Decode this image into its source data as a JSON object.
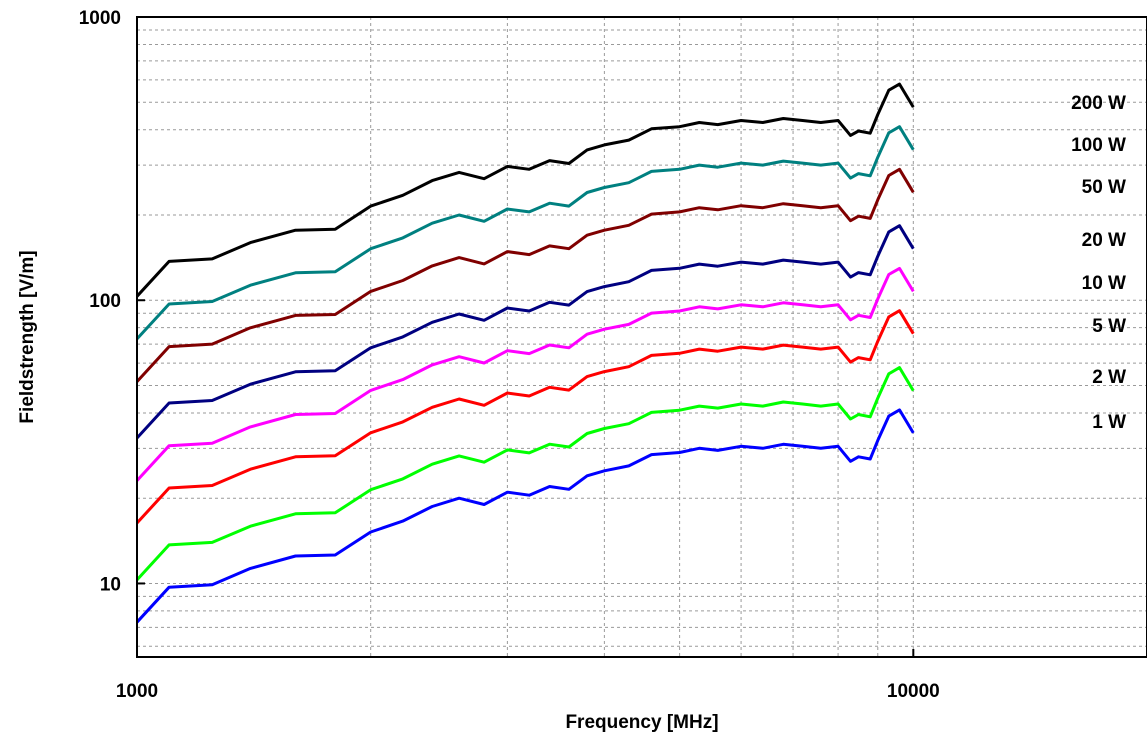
{
  "chart_data": {
    "type": "line",
    "xlabel": "Frequency [MHz]",
    "ylabel": "Fieldstrength [V/m]",
    "x_scale": "log",
    "y_scale": "log",
    "xlim": [
      1000,
      20000
    ],
    "ylim": [
      5.5,
      1000
    ],
    "grid": true,
    "legend": "labels at right end of lines",
    "x_ticks": [
      {
        "value": 1000,
        "label": "1000"
      },
      {
        "value": 10000,
        "label": "10000"
      }
    ],
    "y_ticks": [
      {
        "value": 10,
        "label": "10"
      },
      {
        "value": 100,
        "label": "100"
      },
      {
        "value": 1000,
        "label": "1000"
      }
    ],
    "x": [
      1000,
      1100,
      1250,
      1400,
      1600,
      1800,
      2000,
      2200,
      2400,
      2600,
      2800,
      3000,
      3200,
      3400,
      3600,
      3800,
      4000,
      4300,
      4600,
      5000,
      5300,
      5600,
      6000,
      6400,
      6800,
      7200,
      7600,
      8000,
      8300,
      8500,
      8800,
      9000,
      9300,
      9600,
      10000
    ],
    "base_1W": [
      7.3,
      9.7,
      9.9,
      11.3,
      12.5,
      12.6,
      15.2,
      16.6,
      18.7,
      20.0,
      19.0,
      21.0,
      20.5,
      22.0,
      21.5,
      24.0,
      25.0,
      26.0,
      28.5,
      29.0,
      30.0,
      29.5,
      30.5,
      30.0,
      31.0,
      30.5,
      30.0,
      30.5,
      27.0,
      28.0,
      27.5,
      32.0,
      39.0,
      41.0,
      34.0
    ],
    "series": [
      {
        "name": "200 W",
        "label": "200 W",
        "factor": 14.14,
        "color": "#000000"
      },
      {
        "name": "100 W",
        "label": "100 W",
        "factor": 10.0,
        "color": "#008080"
      },
      {
        "name": "50 W",
        "label": "50 W",
        "factor": 7.07,
        "color": "#800000"
      },
      {
        "name": "20 W",
        "label": "20 W",
        "factor": 4.47,
        "color": "#000080"
      },
      {
        "name": "10 W",
        "label": "10 W",
        "factor": 3.16,
        "color": "#ff00ff"
      },
      {
        "name": "5 W",
        "label": "5 W",
        "factor": 2.24,
        "color": "#ff0000"
      },
      {
        "name": "2 W",
        "label": "2 W",
        "factor": 1.41,
        "color": "#00ff00"
      },
      {
        "name": "1 W",
        "label": "1 W",
        "factor": 1.0,
        "color": "#0000ff"
      }
    ]
  }
}
